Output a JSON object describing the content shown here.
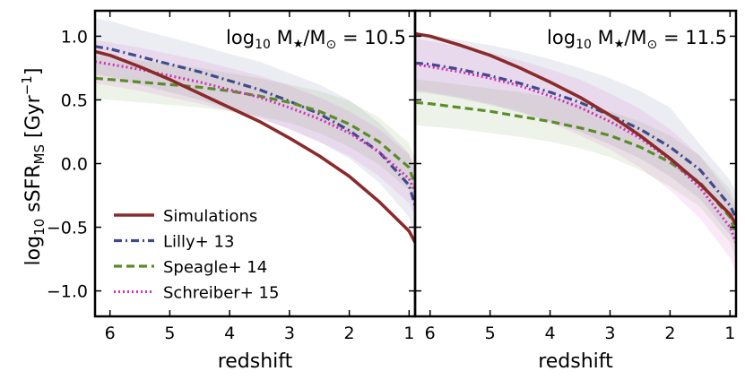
{
  "chart_data": {
    "type": "line",
    "ylabel_main": "log",
    "ylabel_sub": "10",
    "ylabel_mid": " sSFR",
    "ylabel_sub2": "MS",
    "ylabel_unit": " [Gyr",
    "ylabel_sup": "−1",
    "ylabel_end": "]",
    "ylim": [
      -1.2,
      1.2
    ],
    "yticks": [
      1.0,
      0.5,
      0.0,
      -0.5,
      -1.0
    ],
    "ytick_labels": [
      "1.0",
      "0.5",
      "0.0",
      "−0.5",
      "−1.0"
    ],
    "xlim": [
      6.25,
      0.9
    ],
    "xticks": [
      6,
      5,
      4,
      3,
      2,
      1
    ],
    "xtick_labels": [
      "6",
      "5",
      "4",
      "3",
      "2",
      "1"
    ],
    "legend": {
      "position": "lower-left",
      "entries": [
        "Simulations",
        "Lilly+ 13",
        "Speagle+ 14",
        "Schreiber+ 15"
      ]
    },
    "colors": {
      "Simulations": "#8b2a2a",
      "Lilly+ 13": "#3f4a8a",
      "Speagle+ 14": "#5b8c2a",
      "Schreiber+ 15": "#d12fb8"
    },
    "panels": [
      {
        "title_prefix": "log",
        "title_sub": "10",
        "title_suffix": " M",
        "title_star": "★",
        "title_slash": "/M",
        "title_sun": "⊙",
        "title_value": " = 10.5",
        "xlabel": "redshift",
        "x": [
          6.25,
          6,
          5.5,
          5,
          4.5,
          4,
          3.5,
          3,
          2.5,
          2,
          1.5,
          1,
          0.9
        ],
        "series": [
          {
            "name": "Simulations",
            "values": [
              0.88,
              0.85,
              0.76,
              0.66,
              0.55,
              0.44,
              0.33,
              0.2,
              0.06,
              -0.1,
              -0.3,
              -0.53,
              -0.62
            ],
            "band": null
          },
          {
            "name": "Lilly+ 13",
            "values": [
              0.92,
              0.9,
              0.84,
              0.78,
              0.72,
              0.65,
              0.58,
              0.49,
              0.39,
              0.26,
              0.09,
              -0.17,
              -0.33
            ],
            "band": {
              "upper": [
                1.14,
                1.12,
                1.05,
                0.99,
                0.93,
                0.86,
                0.8,
                0.71,
                0.62,
                0.5,
                0.32,
                0.08,
                -0.05
              ],
              "lower": [
                0.7,
                0.68,
                0.62,
                0.56,
                0.5,
                0.43,
                0.36,
                0.27,
                0.17,
                0.04,
                -0.15,
                -0.42,
                -0.6
              ]
            }
          },
          {
            "name": "Speagle+ 14",
            "values": [
              0.67,
              0.66,
              0.64,
              0.62,
              0.6,
              0.57,
              0.53,
              0.48,
              0.41,
              0.31,
              0.17,
              -0.03,
              -0.17
            ],
            "band": {
              "upper": [
                0.85,
                0.84,
                0.81,
                0.78,
                0.75,
                0.71,
                0.67,
                0.62,
                0.57,
                0.49,
                0.36,
                0.16,
                0.03
              ],
              "lower": [
                0.51,
                0.5,
                0.48,
                0.46,
                0.44,
                0.41,
                0.37,
                0.32,
                0.24,
                0.13,
                -0.01,
                -0.21,
                -0.35
              ]
            }
          },
          {
            "name": "Schreiber+ 15",
            "values": [
              0.8,
              0.78,
              0.74,
              0.69,
              0.64,
              0.58,
              0.52,
              0.44,
              0.35,
              0.24,
              0.09,
              -0.12,
              -0.22
            ],
            "band": {
              "upper": [
                0.97,
                0.95,
                0.91,
                0.86,
                0.81,
                0.75,
                0.69,
                0.61,
                0.52,
                0.41,
                0.27,
                0.07,
                -0.03
              ],
              "lower": [
                0.63,
                0.61,
                0.57,
                0.52,
                0.47,
                0.41,
                0.35,
                0.27,
                0.17,
                0.06,
                -0.1,
                -0.31,
                -0.41
              ]
            }
          }
        ]
      },
      {
        "title_prefix": "log",
        "title_sub": "10",
        "title_suffix": " M",
        "title_star": "★",
        "title_slash": "/M",
        "title_sun": "⊙",
        "title_value": " = 11.5",
        "xlabel": "redshift",
        "x": [
          6.25,
          6,
          5.5,
          5,
          4.5,
          4,
          3.5,
          3,
          2.5,
          2,
          1.5,
          1,
          0.9
        ],
        "series": [
          {
            "name": "Simulations",
            "values": [
              1.02,
              1.0,
              0.93,
              0.85,
              0.75,
              0.64,
              0.52,
              0.38,
              0.22,
              0.04,
              -0.16,
              -0.4,
              -0.48
            ],
            "band": null
          },
          {
            "name": "Lilly+ 13",
            "values": [
              0.79,
              0.78,
              0.74,
              0.69,
              0.63,
              0.56,
              0.48,
              0.38,
              0.27,
              0.13,
              -0.05,
              -0.33,
              -0.43
            ],
            "band": {
              "upper": [
                1.02,
                1.01,
                0.97,
                0.93,
                0.88,
                0.82,
                0.75,
                0.67,
                0.57,
                0.44,
                0.15,
                -0.13,
                -0.23
              ],
              "lower": [
                0.56,
                0.55,
                0.51,
                0.46,
                0.4,
                0.33,
                0.25,
                0.15,
                0.04,
                -0.1,
                -0.28,
                -0.56,
                -0.66
              ]
            }
          },
          {
            "name": "Speagle+ 14",
            "values": [
              0.48,
              0.47,
              0.44,
              0.41,
              0.37,
              0.33,
              0.28,
              0.22,
              0.13,
              0.01,
              -0.15,
              -0.42,
              -0.56
            ],
            "band": {
              "upper": [
                0.66,
                0.65,
                0.62,
                0.59,
                0.56,
                0.52,
                0.47,
                0.41,
                0.33,
                0.22,
                0.06,
                -0.2,
                -0.32
              ],
              "lower": [
                0.3,
                0.29,
                0.27,
                0.24,
                0.21,
                0.17,
                0.12,
                0.05,
                -0.05,
                -0.18,
                -0.34,
                -0.62,
                -0.76
              ]
            }
          },
          {
            "name": "Schreiber+ 15",
            "values": [
              0.78,
              0.76,
              0.72,
              0.67,
              0.61,
              0.53,
              0.44,
              0.33,
              0.2,
              0.03,
              -0.19,
              -0.5,
              -0.62
            ],
            "band": {
              "upper": [
                0.98,
                0.96,
                0.92,
                0.87,
                0.81,
                0.74,
                0.66,
                0.55,
                0.43,
                0.27,
                0.06,
                -0.25,
                -0.37
              ],
              "lower": [
                0.58,
                0.56,
                0.52,
                0.47,
                0.41,
                0.32,
                0.22,
                0.11,
                -0.03,
                -0.21,
                -0.43,
                -0.74,
                -0.86
              ]
            }
          }
        ]
      }
    ]
  }
}
